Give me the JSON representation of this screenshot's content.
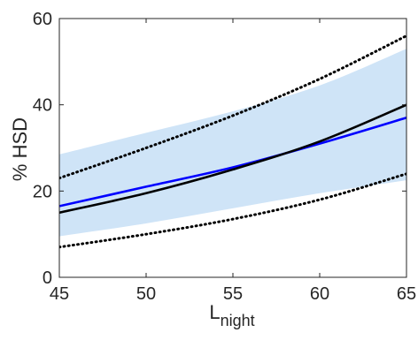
{
  "chart_data": {
    "type": "line",
    "xlabel": "L",
    "xlabel_sub": "night",
    "ylabel": "% HSD",
    "xlim": [
      45,
      65
    ],
    "ylim": [
      0,
      60
    ],
    "x_ticks": [
      45,
      50,
      55,
      60,
      65
    ],
    "y_ticks": [
      0,
      20,
      40,
      60
    ],
    "x_tick_labels": [
      "45",
      "50",
      "55",
      "60",
      "65"
    ],
    "y_tick_labels": [
      "0",
      "20",
      "40",
      "60"
    ],
    "grid": false,
    "legend": "none",
    "band": {
      "color": "#cfe4f7",
      "x": [
        45,
        50,
        55,
        60,
        65
      ],
      "upper": [
        28.5,
        33.5,
        38.5,
        44.5,
        53
      ],
      "lower": [
        9.5,
        12.5,
        16,
        19.5,
        22.5
      ]
    },
    "series": [
      {
        "style": "solid",
        "color": "#0000ff",
        "x": [
          45,
          50,
          55,
          60,
          65
        ],
        "y": [
          16.5,
          21,
          25.5,
          31,
          37
        ]
      },
      {
        "style": "solid",
        "color": "#000000",
        "x": [
          45,
          50,
          55,
          60,
          65
        ],
        "y": [
          15,
          19.5,
          25,
          31.5,
          40
        ]
      },
      {
        "style": "dotted",
        "color": "#000000",
        "x": [
          45,
          50,
          55,
          60,
          65
        ],
        "y": [
          23,
          30,
          37.5,
          46,
          56
        ]
      },
      {
        "style": "dotted",
        "color": "#000000",
        "x": [
          45,
          50,
          55,
          60,
          65
        ],
        "y": [
          7,
          10,
          13.5,
          18,
          24
        ]
      }
    ]
  }
}
